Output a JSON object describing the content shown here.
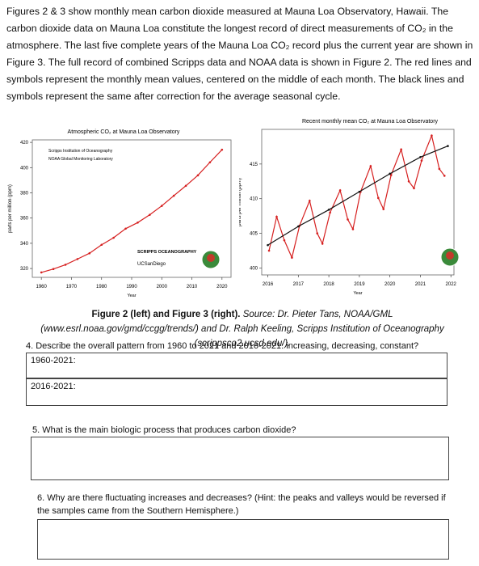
{
  "intro": "Figures 2 & 3 show monthly mean carbon dioxide measured at Mauna Loa Observatory, Hawaii. The carbon dioxide data on Mauna Loa constitute the longest record of direct measurements of CO₂ in the atmosphere. The last five complete years of the Mauna Loa CO₂ record plus the current year are shown in Figure 3. The full record of combined Scripps data and NOAA data is shown in Figure 2. The red lines and symbols represent the monthly mean values, centered on the middle of each month. The black lines and symbols represent the same after correction for the average seasonal cycle.",
  "charts": [
    {
      "type": "line",
      "title": "Atmospheric CO₂ at Mauna Loa Observatory",
      "annotations": [
        "Scripps Institution of Oceanography",
        "NOAA Global Monitoring Laboratory",
        "SCRIPPS OCEANOGRAPHY",
        "UCSanDiego"
      ],
      "ylabel": "parts per million (ppm)",
      "xlabel": "Year",
      "xlim": [
        1957,
        2023
      ],
      "xticks": [
        1960,
        1970,
        1980,
        1990,
        2000,
        2010,
        2020
      ],
      "ylim": [
        313,
        422
      ],
      "yticks": [
        320,
        340,
        360,
        380,
        400,
        420
      ],
      "series": [
        {
          "color": "#d62020",
          "x": [
            1960,
            1964,
            1968,
            1972,
            1976,
            1980,
            1984,
            1988,
            1992,
            1996,
            2000,
            2004,
            2008,
            2012,
            2016,
            2020
          ],
          "values": [
            316.9,
            319.6,
            323.0,
            327.5,
            332.1,
            338.8,
            344.4,
            351.6,
            356.4,
            362.6,
            369.7,
            377.7,
            385.6,
            393.9,
            404.2,
            414.2
          ]
        }
      ]
    },
    {
      "type": "line",
      "title": "Recent monthly mean CO₂ at Mauna Loa Observatory",
      "ylabel": "parts per million (ppm)",
      "xlabel": "Year",
      "xlim": [
        2015.8,
        2022.1
      ],
      "xticks": [
        2016,
        2017,
        2018,
        2019,
        2020,
        2021,
        2022
      ],
      "ylim": [
        399,
        420
      ],
      "yticks": [
        400,
        405,
        410,
        415
      ],
      "series": [
        {
          "color": "#d62020",
          "x": [
            2016.04,
            2016.29,
            2016.54,
            2016.79,
            2017.04,
            2017.37,
            2017.62,
            2017.79,
            2018.04,
            2018.37,
            2018.62,
            2018.79,
            2019.04,
            2019.37,
            2019.62,
            2019.79,
            2020.04,
            2020.37,
            2020.62,
            2020.79,
            2021.04,
            2021.37,
            2021.62,
            2021.79
          ],
          "values": [
            402.5,
            407.4,
            404.0,
            401.5,
            406.1,
            409.7,
            405.0,
            403.5,
            408.0,
            411.2,
            407.0,
            405.6,
            411.0,
            414.7,
            410.1,
            408.5,
            413.4,
            417.1,
            412.5,
            411.5,
            415.5,
            419.1,
            414.3,
            413.3
          ]
        },
        {
          "color": "#111111",
          "x": [
            2016,
            2017,
            2018,
            2019,
            2020,
            2021,
            2021.9
          ],
          "values": [
            403.3,
            406.0,
            408.4,
            411.0,
            413.6,
            416.0,
            417.6
          ]
        }
      ]
    }
  ],
  "caption": {
    "bold": "Figure 2 (left) and Figure 3 (right).",
    "text": "Source: Dr. Pieter Tans, NOAA/GML (www.esrl.noaa.gov/gmd/ccgg/trends/) and Dr. Ralph Keeling, Scripps Institution of Oceanography (scrippsco2.ucsd.edu/)."
  },
  "questions": [
    {
      "text": "4. Describe the overall pattern from 1960 to 2021 and 2016-2021: increasing, decreasing, constant?",
      "boxes": [
        "1960-2021:",
        "2016-2021:"
      ]
    },
    {
      "text": "5. What is the main biologic process that produces carbon dioxide?"
    },
    {
      "text": "6. Why are there fluctuating increases and decreases? (Hint: the peaks and valleys would be reversed if the samples came from the Southern Hemisphere.)"
    }
  ]
}
